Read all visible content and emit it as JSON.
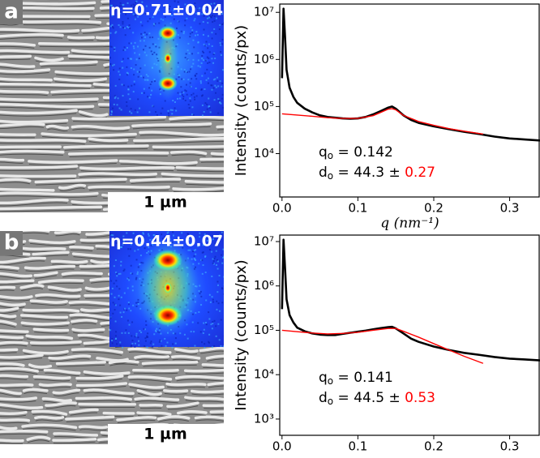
{
  "panels": [
    {
      "label": "a",
      "eta": "η=0.71±0.04",
      "scale_bar": "1 µm"
    },
    {
      "label": "b",
      "eta": "η=0.44±0.07",
      "scale_bar": "1 µm"
    }
  ],
  "chart_data": [
    {
      "type": "line",
      "y_label": "Intensity (counts/px)",
      "x_label": "q (nm⁻¹)",
      "log_y": true,
      "xlim": [
        -0.003,
        0.34
      ],
      "xticks": [
        {
          "value": 0,
          "label": "0.0"
        },
        0.1,
        0.2,
        0.3
      ],
      "ylim": [
        1200,
        15000000
      ],
      "yticks": [
        {
          "value": 10000,
          "label": "10⁴"
        },
        {
          "value": 100000,
          "label": "10⁵"
        },
        {
          "value": 1000000,
          "label": "10⁶"
        },
        {
          "value": 10000000,
          "label": "10⁷"
        }
      ],
      "annotations": {
        "q_symbol": "q",
        "q_sub": "o",
        "q_text": " = 0.142",
        "d_symbol": "d",
        "d_sub": "o",
        "d_text": " = 44.3 ± ",
        "d_error": "0.27",
        "d_error_color": "#ff0000"
      },
      "series": [
        {
          "color": "#000000",
          "x": [
            0.0,
            0.002,
            0.004,
            0.006,
            0.01,
            0.015,
            0.02,
            0.03,
            0.04,
            0.05,
            0.06,
            0.07,
            0.08,
            0.09,
            0.1,
            0.11,
            0.12,
            0.13,
            0.14,
            0.145,
            0.15,
            0.16,
            0.17,
            0.18,
            0.2,
            0.22,
            0.24,
            0.26,
            0.28,
            0.3,
            0.32,
            0.34
          ],
          "values": [
            400000,
            12000000,
            3000000,
            600000,
            250000,
            160000,
            120000,
            90000,
            75000,
            65000,
            60000,
            58000,
            56000,
            55000,
            56000,
            60000,
            68000,
            80000,
            95000,
            100000,
            90000,
            65000,
            52000,
            45000,
            38000,
            33000,
            29000,
            26000,
            23000,
            21000,
            20000,
            19000
          ]
        },
        {
          "color": "#ff0000",
          "x": [
            0,
            0.02,
            0.04,
            0.06,
            0.08,
            0.1,
            0.12,
            0.13,
            0.14,
            0.145,
            0.15,
            0.16,
            0.18,
            0.2,
            0.22,
            0.24,
            0.265
          ],
          "values": [
            70000,
            66000,
            62000,
            58000,
            56000,
            56000,
            64000,
            75000,
            88000,
            90000,
            85000,
            65000,
            48000,
            40000,
            34000,
            30000,
            26000
          ]
        }
      ]
    },
    {
      "type": "line",
      "y_label": "Intensity (counts/px)",
      "log_y": true,
      "xlim": [
        -0.003,
        0.34
      ],
      "xticks": [
        {
          "value": 0,
          "label": "0.0"
        },
        0.1,
        0.2,
        0.3
      ],
      "ylim": [
        430,
        14000000
      ],
      "yticks": [
        {
          "value": 1000,
          "label": "10³"
        },
        {
          "value": 10000,
          "label": "10⁴"
        },
        {
          "value": 100000,
          "label": "10⁵"
        },
        {
          "value": 1000000,
          "label": "10⁶"
        },
        {
          "value": 10000000,
          "label": "10⁷"
        }
      ],
      "annotations": {
        "q_symbol": "q",
        "q_sub": "o",
        "q_text": " = 0.141",
        "d_symbol": "d",
        "d_sub": "o",
        "d_text": " = 44.5 ± ",
        "d_error": "0.53",
        "d_error_color": "#ff0000"
      },
      "series": [
        {
          "color": "#000000",
          "x": [
            0.0,
            0.002,
            0.004,
            0.006,
            0.01,
            0.015,
            0.02,
            0.03,
            0.04,
            0.05,
            0.06,
            0.07,
            0.08,
            0.09,
            0.1,
            0.11,
            0.12,
            0.13,
            0.14,
            0.145,
            0.15,
            0.16,
            0.17,
            0.18,
            0.2,
            0.22,
            0.24,
            0.26,
            0.28,
            0.3,
            0.32,
            0.34
          ],
          "values": [
            300000,
            11000000,
            2500000,
            500000,
            220000,
            150000,
            115000,
            95000,
            85000,
            80000,
            78000,
            78000,
            83000,
            88000,
            93000,
            98000,
            105000,
            112000,
            118000,
            120000,
            110000,
            85000,
            65000,
            55000,
            43000,
            36000,
            31000,
            28000,
            25000,
            23000,
            22000,
            21000
          ]
        },
        {
          "color": "#ff0000",
          "x": [
            0,
            0.02,
            0.04,
            0.06,
            0.08,
            0.1,
            0.12,
            0.14,
            0.15,
            0.16,
            0.18,
            0.2,
            0.22,
            0.24,
            0.265
          ],
          "values": [
            100000,
            93000,
            87000,
            83000,
            85000,
            90000,
            100000,
            110000,
            110000,
            95000,
            70000,
            50000,
            36000,
            26000,
            18000
          ]
        }
      ]
    }
  ]
}
